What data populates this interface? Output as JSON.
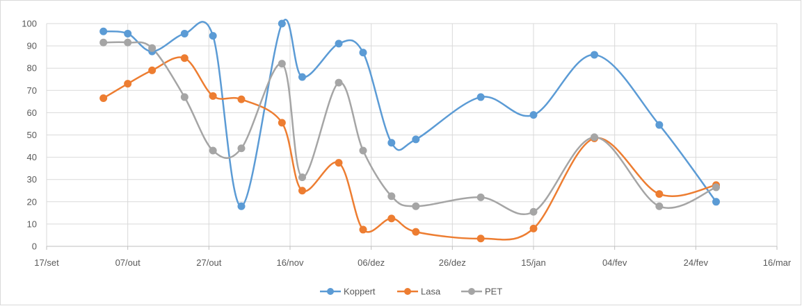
{
  "chart_data": {
    "type": "line",
    "title": "",
    "xlabel": "",
    "ylabel": "",
    "ylim": [
      0,
      100
    ],
    "yticks": [
      0,
      10,
      20,
      30,
      40,
      50,
      60,
      70,
      80,
      90,
      100
    ],
    "xlim": [
      "2016-09-17",
      "2017-03-16"
    ],
    "xticks": [
      {
        "date": "2016-09-17",
        "label": "17/set"
      },
      {
        "date": "2016-10-07",
        "label": "07/out"
      },
      {
        "date": "2016-10-27",
        "label": "27/out"
      },
      {
        "date": "2016-11-16",
        "label": "16/nov"
      },
      {
        "date": "2016-12-06",
        "label": "06/dez"
      },
      {
        "date": "2016-12-26",
        "label": "26/dez"
      },
      {
        "date": "2017-01-15",
        "label": "15/jan"
      },
      {
        "date": "2017-02-04",
        "label": "04/fev"
      },
      {
        "date": "2017-02-24",
        "label": "24/fev"
      },
      {
        "date": "2017-03-16",
        "label": "16/mar"
      }
    ],
    "grid": true,
    "smooth": true,
    "legend_position": "bottom",
    "series": [
      {
        "name": "Koppert",
        "color": "#5b9bd5",
        "points": [
          {
            "x": "2016-10-01",
            "y": 96.5
          },
          {
            "x": "2016-10-07",
            "y": 95.5
          },
          {
            "x": "2016-10-13",
            "y": 87.5
          },
          {
            "x": "2016-10-21",
            "y": 95.5
          },
          {
            "x": "2016-10-28",
            "y": 94.5
          },
          {
            "x": "2016-11-04",
            "y": 18
          },
          {
            "x": "2016-11-14",
            "y": 100
          },
          {
            "x": "2016-11-19",
            "y": 76
          },
          {
            "x": "2016-11-28",
            "y": 91
          },
          {
            "x": "2016-12-04",
            "y": 87
          },
          {
            "x": "2016-12-11",
            "y": 46.5
          },
          {
            "x": "2016-12-17",
            "y": 48
          },
          {
            "x": "2017-01-02",
            "y": 67
          },
          {
            "x": "2017-01-15",
            "y": 59
          },
          {
            "x": "2017-01-30",
            "y": 86
          },
          {
            "x": "2017-02-15",
            "y": 54.5
          },
          {
            "x": "2017-03-01",
            "y": 20
          }
        ]
      },
      {
        "name": "Lasa",
        "color": "#ed7d31",
        "points": [
          {
            "x": "2016-10-01",
            "y": 66.5
          },
          {
            "x": "2016-10-07",
            "y": 73
          },
          {
            "x": "2016-10-13",
            "y": 79
          },
          {
            "x": "2016-10-21",
            "y": 84.5
          },
          {
            "x": "2016-10-28",
            "y": 67.5
          },
          {
            "x": "2016-11-04",
            "y": 66
          },
          {
            "x": "2016-11-14",
            "y": 55.5
          },
          {
            "x": "2016-11-19",
            "y": 25
          },
          {
            "x": "2016-11-28",
            "y": 37.5
          },
          {
            "x": "2016-12-04",
            "y": 7.5
          },
          {
            "x": "2016-12-11",
            "y": 12.5
          },
          {
            "x": "2016-12-17",
            "y": 6.5
          },
          {
            "x": "2017-01-02",
            "y": 3.5
          },
          {
            "x": "2017-01-15",
            "y": 8
          },
          {
            "x": "2017-01-30",
            "y": 48.5
          },
          {
            "x": "2017-02-15",
            "y": 23.5
          },
          {
            "x": "2017-03-01",
            "y": 27.5
          }
        ]
      },
      {
        "name": "PET",
        "color": "#a5a5a5",
        "points": [
          {
            "x": "2016-10-01",
            "y": 91.5
          },
          {
            "x": "2016-10-07",
            "y": 91.5
          },
          {
            "x": "2016-10-13",
            "y": 89
          },
          {
            "x": "2016-10-21",
            "y": 67
          },
          {
            "x": "2016-10-28",
            "y": 43
          },
          {
            "x": "2016-11-04",
            "y": 44
          },
          {
            "x": "2016-11-14",
            "y": 82
          },
          {
            "x": "2016-11-19",
            "y": 31
          },
          {
            "x": "2016-11-28",
            "y": 73.5
          },
          {
            "x": "2016-12-04",
            "y": 43
          },
          {
            "x": "2016-12-11",
            "y": 22.5
          },
          {
            "x": "2016-12-17",
            "y": 18
          },
          {
            "x": "2017-01-02",
            "y": 22
          },
          {
            "x": "2017-01-15",
            "y": 15.5
          },
          {
            "x": "2017-01-30",
            "y": 49
          },
          {
            "x": "2017-02-15",
            "y": 18
          },
          {
            "x": "2017-03-01",
            "y": 26.5
          }
        ]
      }
    ]
  }
}
